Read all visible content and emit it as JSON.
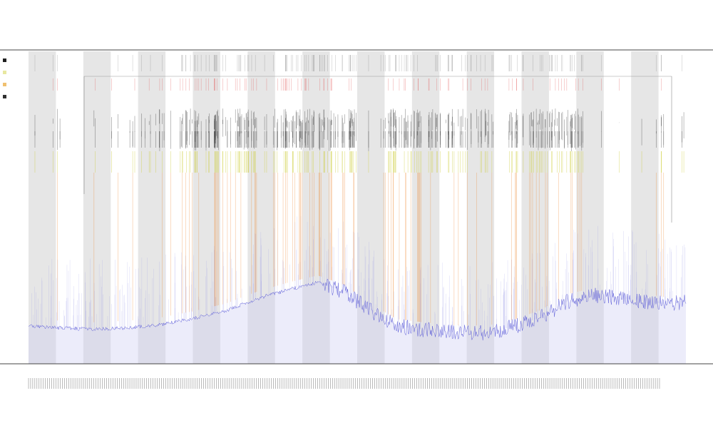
{
  "chart_data": {
    "type": "line",
    "title": "",
    "subtitle": "",
    "xlabel": "",
    "ylabel": "",
    "grid": false,
    "legend_position": "top-left",
    "legend_color_swatches": [
      "#1f1f1f",
      "#e8e8a0",
      "#f0c070",
      "#303030"
    ],
    "band_color": "#e6e6e6",
    "baseline_series": {
      "color": "#5a5ad8",
      "fill_color": "#c8c8f0",
      "profile": [
        [
          0.0,
          0.88
        ],
        [
          0.05,
          0.885
        ],
        [
          0.1,
          0.89
        ],
        [
          0.15,
          0.885
        ],
        [
          0.2,
          0.875
        ],
        [
          0.25,
          0.855
        ],
        [
          0.3,
          0.83
        ],
        [
          0.35,
          0.79
        ],
        [
          0.4,
          0.76
        ],
        [
          0.44,
          0.74
        ],
        [
          0.48,
          0.77
        ],
        [
          0.52,
          0.83
        ],
        [
          0.56,
          0.88
        ],
        [
          0.6,
          0.89
        ],
        [
          0.65,
          0.9
        ],
        [
          0.7,
          0.9
        ],
        [
          0.74,
          0.88
        ],
        [
          0.78,
          0.85
        ],
        [
          0.82,
          0.8
        ],
        [
          0.86,
          0.78
        ],
        [
          0.9,
          0.79
        ],
        [
          0.94,
          0.8
        ],
        [
          0.97,
          0.81
        ],
        [
          1.0,
          0.8
        ]
      ]
    },
    "event_series": [
      {
        "color": "#333333"
      },
      {
        "color": "#cccc33"
      },
      {
        "color": "#ee8833"
      },
      {
        "color": "#e05555"
      }
    ]
  }
}
